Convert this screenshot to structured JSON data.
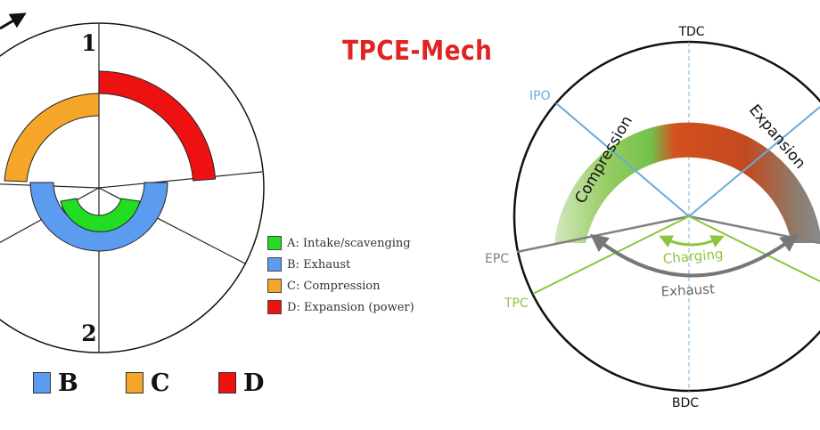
{
  "title": "TPCE-Mech",
  "left_diagram": {
    "top_label": "1",
    "bottom_label": "2"
  },
  "legend": [
    {
      "label": "A: Intake/scavenging",
      "color": "#22dd22"
    },
    {
      "label": "B: Exhaust",
      "color": "#5b9cf0"
    },
    {
      "label": "C: Compression",
      "color": "#f6a72a"
    },
    {
      "label": "D: Expansion (power)",
      "color": "#ee1111"
    }
  ],
  "bottom_key": [
    {
      "label": "B",
      "color": "#5b9cf0"
    },
    {
      "label": "C",
      "color": "#f6a72a"
    },
    {
      "label": "D",
      "color": "#ee1111"
    }
  ],
  "right_diagram": {
    "labels": {
      "tdc": "TDC",
      "bdc": "BDC",
      "ipo": "IPO",
      "epc": "EPC",
      "tpc": "TPC"
    },
    "arc_labels": {
      "compression": "Compression",
      "expansion": "Expansion",
      "charging": "Charging",
      "exhaust": "Exhaust"
    },
    "colors": {
      "ipo_line": "#6aaad8",
      "epc_line": "#808080",
      "tpc_line": "#8cc63f",
      "charging": "#8cc63f",
      "exhaust": "#777777"
    }
  }
}
